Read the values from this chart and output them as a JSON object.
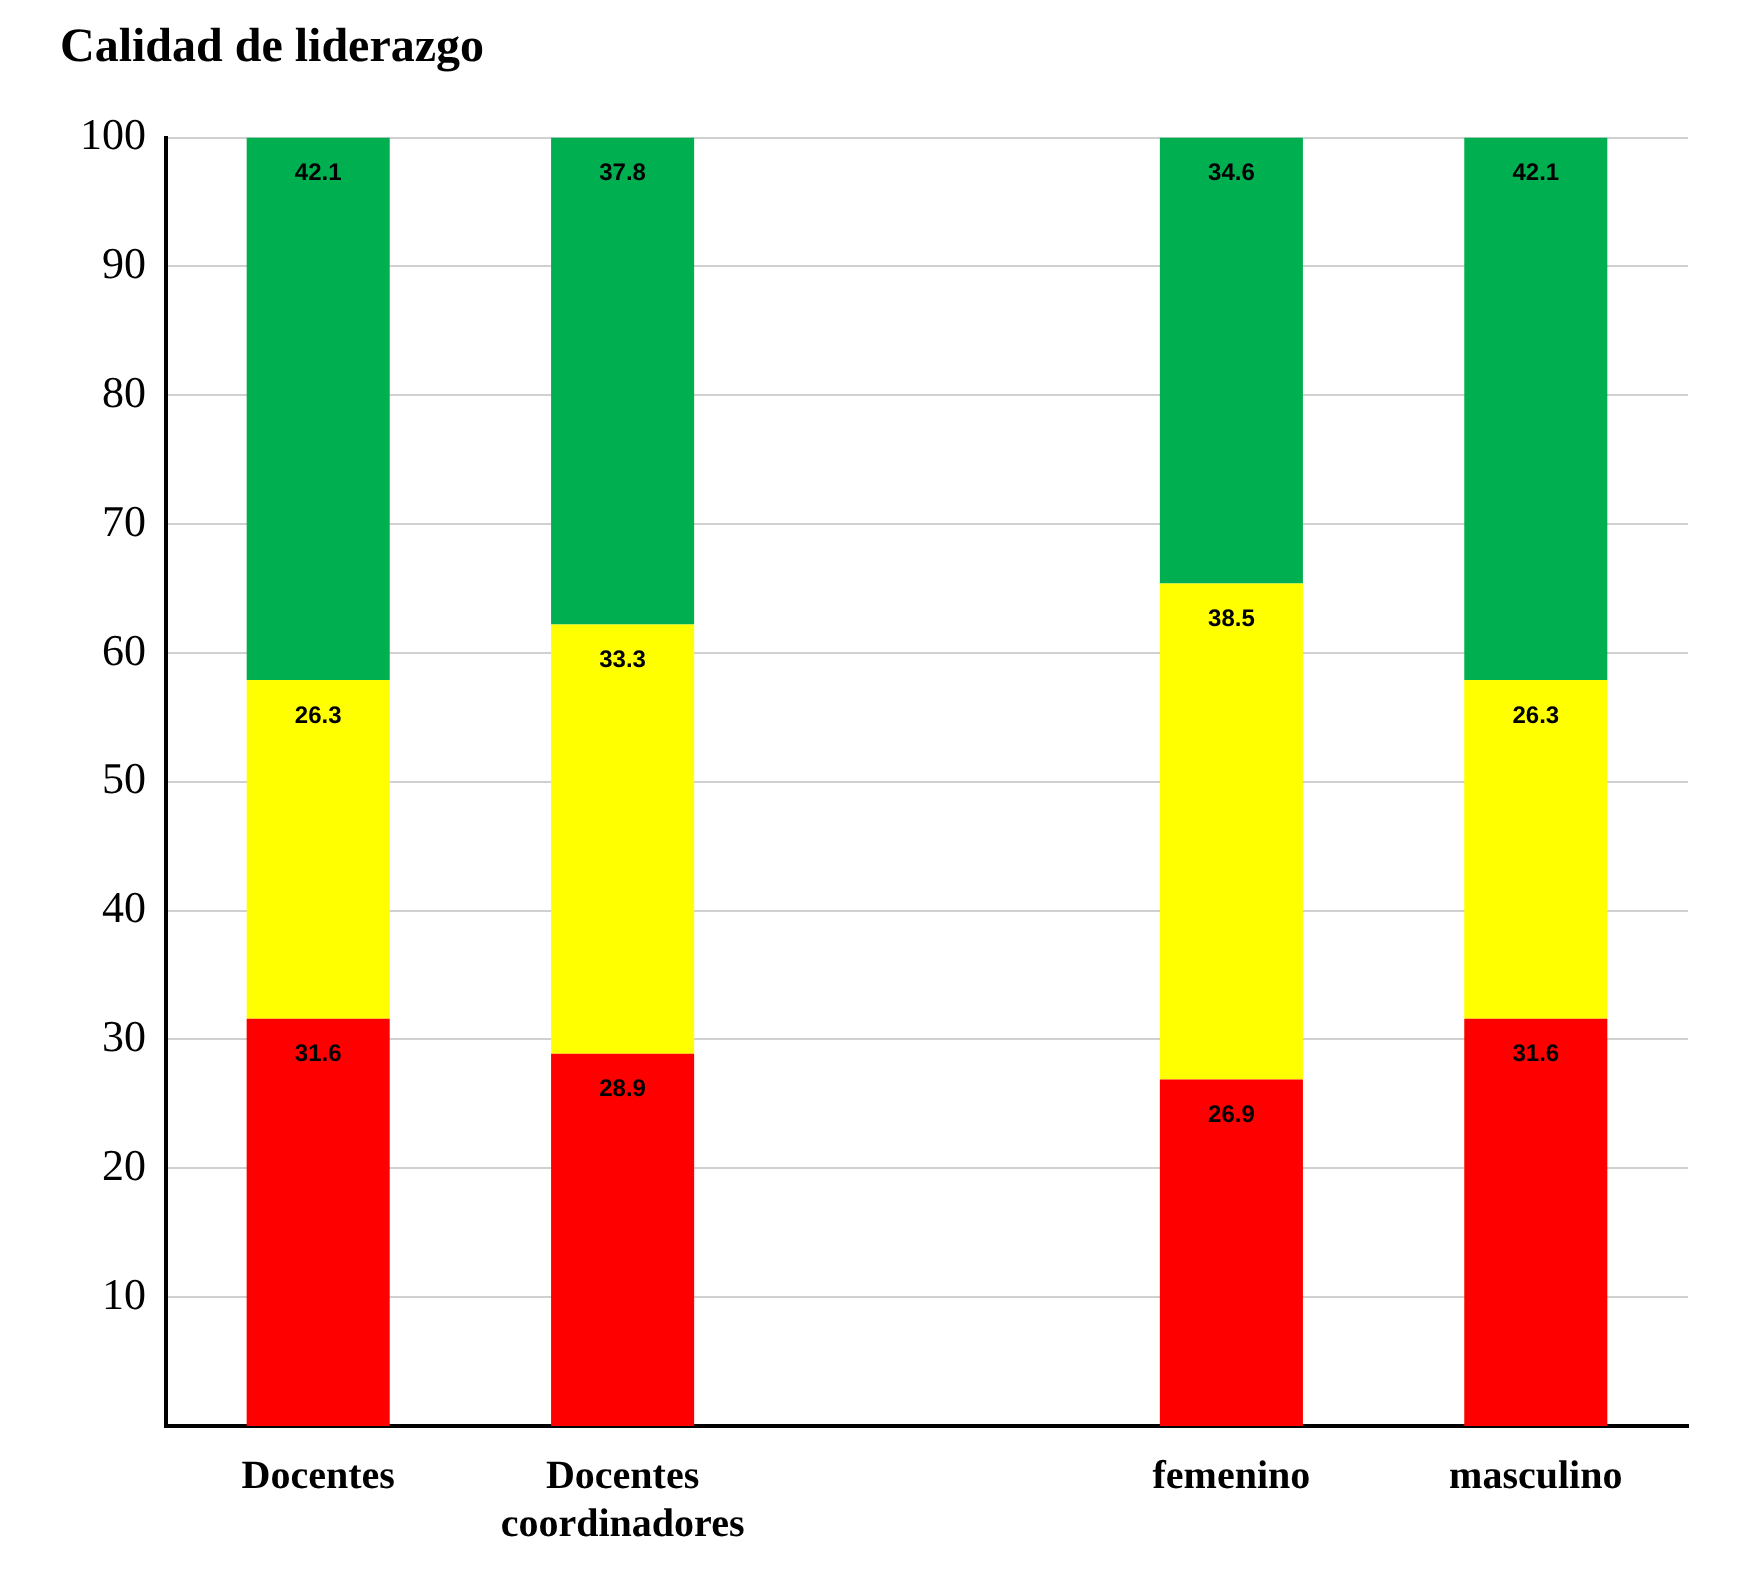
{
  "chart_data": {
    "type": "bar",
    "title": "Calidad de liderazgo",
    "stacked": true,
    "data_labels": true,
    "grid": "y",
    "legend": false,
    "categories": [
      "Docentes",
      "Docentes coordinadores",
      null,
      "femenino",
      "masculino"
    ],
    "series": [
      {
        "color": "#ff0000",
        "values": [
          31.6,
          28.9,
          null,
          26.9,
          31.6
        ]
      },
      {
        "color": "#ffff00",
        "values": [
          26.3,
          33.3,
          null,
          38.5,
          26.3
        ]
      },
      {
        "color": "#00b050",
        "values": [
          42.1,
          37.8,
          null,
          34.6,
          42.1
        ]
      }
    ],
    "ylim": [
      0,
      100
    ],
    "yticks": [
      10,
      20,
      30,
      40,
      50,
      60,
      70,
      80,
      90,
      100
    ]
  }
}
